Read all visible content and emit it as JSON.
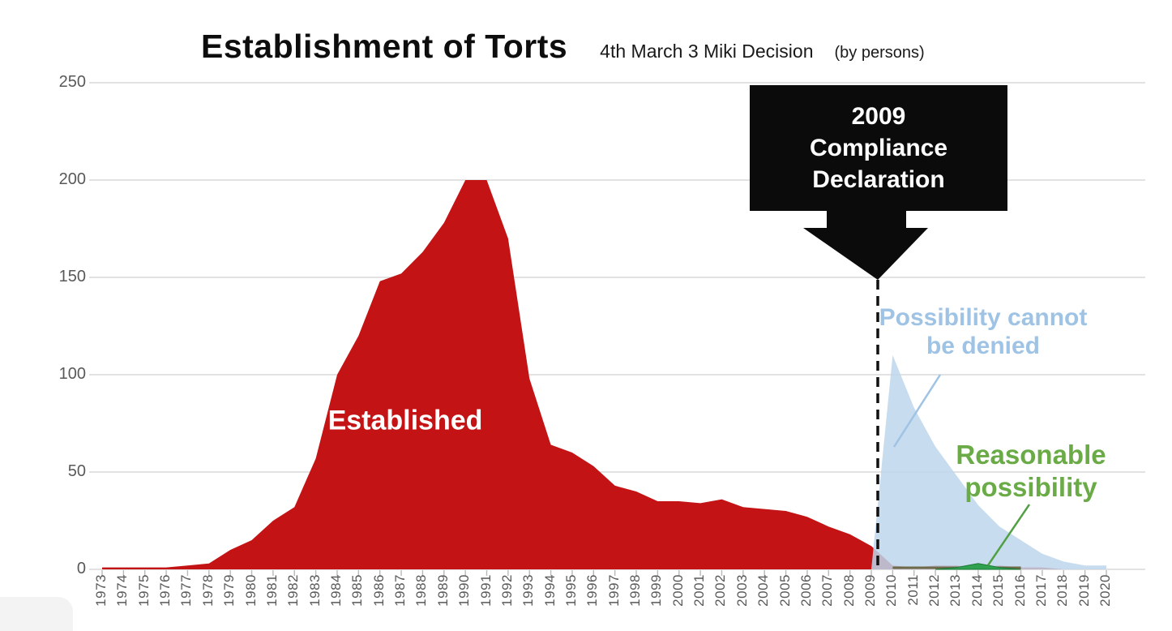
{
  "header": {
    "title": "Establishment of Torts",
    "subtitle": "4th March 3 Miki Decision",
    "unit_note": "(by persons)"
  },
  "annotations": {
    "callout": {
      "lines": [
        "2009",
        "Compliance",
        "Declaration"
      ],
      "points_to_year": 2009
    },
    "established": {
      "label": "Established"
    },
    "possibility": {
      "lines": [
        "Possibility cannot",
        "be denied"
      ]
    },
    "reasonable": {
      "lines": [
        "Reasonable",
        "possibility"
      ]
    }
  },
  "colors": {
    "established_area": "#c31315",
    "possibility_area": "#bdd6eb",
    "reasonable_area": "#2fa14f",
    "reasonable_edge": "#1e7a38",
    "possibility_text": "#9fc3e4",
    "reasonable_text": "#6aab47",
    "axis_text": "#595959",
    "gridline": "#d9d9d9",
    "tick": "#b9b9b9",
    "event_line": "#111111",
    "callout_bg": "#0b0b0b",
    "overlap_strip": "#6f6a49"
  },
  "chart_data": {
    "type": "area",
    "title": "Establishment of Torts",
    "subtitle": "4th March 3 Miki Decision (by persons)",
    "xlabel": "",
    "ylabel": "",
    "ylim": [
      0,
      250
    ],
    "y_ticks": [
      0,
      50,
      100,
      150,
      200,
      250
    ],
    "grid": "horizontal",
    "legend_position": "none",
    "x": [
      1973,
      1974,
      1975,
      1976,
      1977,
      1978,
      1979,
      1980,
      1981,
      1982,
      1983,
      1984,
      1985,
      1986,
      1987,
      1988,
      1989,
      1990,
      1991,
      1992,
      1993,
      1994,
      1995,
      1996,
      1997,
      1998,
      1999,
      2000,
      2001,
      2002,
      2003,
      2004,
      2005,
      2006,
      2007,
      2008,
      2009,
      2010,
      2011,
      2012,
      2013,
      2014,
      2015,
      2016,
      2017,
      2018,
      2019,
      2020
    ],
    "series": [
      {
        "name": "Established",
        "color": "#c31315",
        "values": [
          1,
          1,
          1,
          1,
          2,
          3,
          10,
          15,
          25,
          32,
          57,
          100,
          120,
          148,
          152,
          163,
          178,
          200,
          200,
          170,
          98,
          64,
          60,
          53,
          43,
          40,
          35,
          35,
          34,
          36,
          32,
          31,
          30,
          27,
          22,
          18,
          12,
          2,
          1,
          2,
          2,
          1,
          2,
          1,
          1,
          0,
          0,
          0
        ]
      },
      {
        "name": "Possibility cannot be denied",
        "color": "#bdd6eb",
        "values": [
          0,
          0,
          0,
          0,
          0,
          0,
          0,
          0,
          0,
          0,
          0,
          0,
          0,
          0,
          0,
          0,
          0,
          0,
          0,
          0,
          0,
          0,
          0,
          0,
          0,
          0,
          0,
          0,
          0,
          0,
          0,
          0,
          0,
          0,
          0,
          0,
          0,
          110,
          83,
          63,
          48,
          33,
          22,
          15,
          8,
          4,
          2,
          2
        ]
      },
      {
        "name": "Reasonable possibility",
        "color": "#2fa14f",
        "values": [
          0,
          0,
          0,
          0,
          0,
          0,
          0,
          0,
          0,
          0,
          0,
          0,
          0,
          0,
          0,
          0,
          0,
          0,
          0,
          0,
          0,
          0,
          0,
          0,
          0,
          0,
          0,
          0,
          0,
          0,
          0,
          0,
          0,
          0,
          0,
          0,
          0,
          0,
          0,
          0,
          1,
          3,
          1,
          0,
          0,
          0,
          0,
          0
        ]
      }
    ],
    "event_line": {
      "year": 2009,
      "style": "dashed",
      "color": "#111111"
    }
  }
}
